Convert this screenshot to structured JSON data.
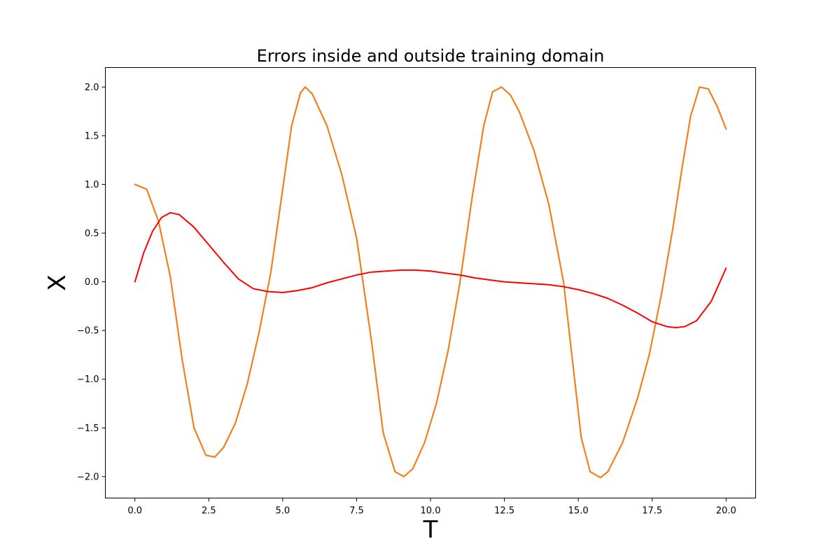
{
  "chart_data": {
    "type": "line",
    "title": "Errors inside and outside training domain",
    "xlabel": "T",
    "ylabel": "X",
    "xlim": [
      -1.0,
      21.0
    ],
    "ylim": [
      -2.22,
      2.2
    ],
    "xticks": [
      0.0,
      2.5,
      5.0,
      7.5,
      10.0,
      12.5,
      15.0,
      17.5,
      20.0
    ],
    "xtick_labels": [
      "0.0",
      "2.5",
      "5.0",
      "7.5",
      "10.0",
      "12.5",
      "15.0",
      "17.5",
      "20.0"
    ],
    "yticks": [
      -2.0,
      -1.5,
      -1.0,
      -0.5,
      0.0,
      0.5,
      1.0,
      1.5,
      2.0
    ],
    "ytick_labels": [
      "−2.0",
      "−1.5",
      "−1.0",
      "−0.5",
      "0.0",
      "0.5",
      "1.0",
      "1.5",
      "2.0"
    ],
    "grid": false,
    "series": [
      {
        "color": "#1f77b4",
        "x": [
          0.0,
          0.4,
          0.8,
          1.2,
          1.6,
          2.0,
          2.4,
          2.7,
          3.0,
          3.4,
          3.8,
          4.2,
          4.6,
          5.0,
          5.3,
          5.6,
          5.76,
          6.0,
          6.5,
          7.0,
          7.5,
          8.0,
          8.4,
          8.8,
          9.1,
          9.4,
          9.8,
          10.2,
          10.6,
          11.0,
          11.4,
          11.8,
          12.1,
          12.4,
          12.7,
          13.0,
          13.5,
          14.0,
          14.5,
          14.8,
          15.1,
          15.4,
          15.75,
          16.0,
          16.5,
          17.0,
          17.4,
          17.8,
          18.2,
          18.5,
          18.8,
          19.1,
          19.4,
          19.7,
          20.0
        ],
        "y": [
          1.0,
          0.95,
          0.62,
          0.05,
          -0.8,
          -1.5,
          -1.78,
          -1.8,
          -1.7,
          -1.45,
          -1.05,
          -0.52,
          0.1,
          0.95,
          1.6,
          1.94,
          2.0,
          1.93,
          1.6,
          1.1,
          0.45,
          -0.6,
          -1.55,
          -1.95,
          -2.0,
          -1.92,
          -1.65,
          -1.25,
          -0.7,
          0.0,
          0.85,
          1.6,
          1.95,
          2.0,
          1.92,
          1.75,
          1.35,
          0.8,
          0.0,
          -0.8,
          -1.6,
          -1.95,
          -2.01,
          -1.95,
          -1.65,
          -1.2,
          -0.75,
          -0.15,
          0.55,
          1.15,
          1.7,
          2.0,
          1.98,
          1.8,
          1.57
        ]
      },
      {
        "color": "#ff7f0e",
        "x": [
          0.0,
          0.4,
          0.8,
          1.2,
          1.6,
          2.0,
          2.4,
          2.7,
          3.0,
          3.4,
          3.8,
          4.2,
          4.6,
          5.0,
          5.3,
          5.6,
          5.76,
          6.0,
          6.5,
          7.0,
          7.5,
          8.0,
          8.4,
          8.8,
          9.1,
          9.4,
          9.8,
          10.2,
          10.6,
          11.0,
          11.4,
          11.8,
          12.1,
          12.4,
          12.7,
          13.0,
          13.5,
          14.0,
          14.5,
          14.8,
          15.1,
          15.4,
          15.75,
          16.0,
          16.5,
          17.0,
          17.4,
          17.8,
          18.2,
          18.5,
          18.8,
          19.1,
          19.4,
          19.7,
          20.0
        ],
        "y": [
          1.0,
          0.95,
          0.62,
          0.05,
          -0.8,
          -1.5,
          -1.78,
          -1.8,
          -1.7,
          -1.45,
          -1.05,
          -0.52,
          0.1,
          0.95,
          1.6,
          1.94,
          2.0,
          1.93,
          1.6,
          1.1,
          0.45,
          -0.6,
          -1.55,
          -1.95,
          -2.0,
          -1.92,
          -1.65,
          -1.25,
          -0.7,
          0.0,
          0.85,
          1.6,
          1.95,
          2.0,
          1.92,
          1.75,
          1.35,
          0.8,
          0.0,
          -0.8,
          -1.6,
          -1.95,
          -2.01,
          -1.95,
          -1.65,
          -1.2,
          -0.75,
          -0.15,
          0.55,
          1.15,
          1.7,
          2.0,
          1.98,
          1.8,
          1.57
        ]
      },
      {
        "color": "#ff0000",
        "x": [
          0.0,
          0.3,
          0.6,
          0.9,
          1.2,
          1.5,
          2.0,
          2.5,
          3.0,
          3.5,
          4.0,
          4.5,
          5.0,
          5.5,
          6.0,
          6.5,
          7.0,
          7.5,
          8.0,
          8.5,
          9.0,
          9.5,
          10.0,
          10.5,
          11.0,
          11.5,
          12.0,
          12.5,
          13.0,
          13.5,
          14.0,
          14.5,
          15.0,
          15.5,
          16.0,
          16.5,
          17.0,
          17.5,
          18.0,
          18.3,
          18.6,
          19.0,
          19.5,
          20.0
        ],
        "y": [
          0.0,
          0.3,
          0.52,
          0.66,
          0.71,
          0.69,
          0.56,
          0.38,
          0.2,
          0.03,
          -0.07,
          -0.1,
          -0.11,
          -0.09,
          -0.06,
          -0.01,
          0.03,
          0.07,
          0.1,
          0.11,
          0.12,
          0.12,
          0.11,
          0.09,
          0.07,
          0.04,
          0.02,
          0.0,
          -0.01,
          -0.02,
          -0.03,
          -0.05,
          -0.08,
          -0.12,
          -0.17,
          -0.24,
          -0.32,
          -0.41,
          -0.46,
          -0.47,
          -0.46,
          -0.4,
          -0.2,
          0.14
        ]
      }
    ]
  }
}
